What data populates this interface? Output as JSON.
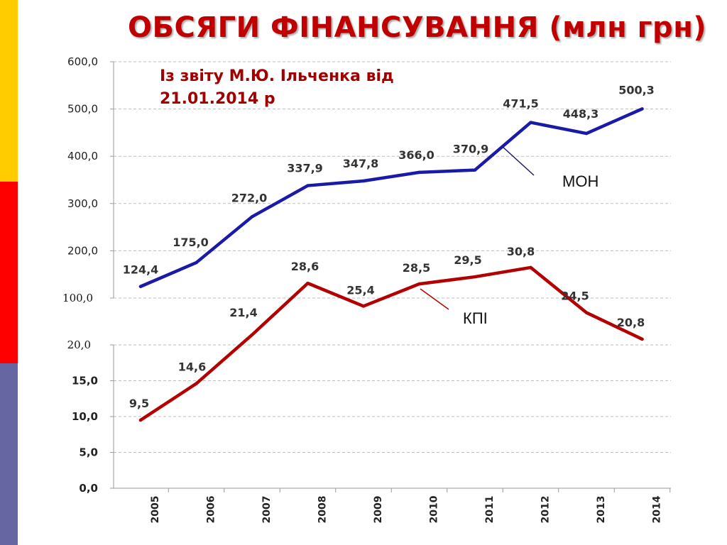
{
  "page": {
    "title": "ОБСЯГИ ФІНАНСУВАННЯ (млн грн)",
    "note_line1": "Із звіту М.Ю. Ільченка від",
    "note_line2": "21.01.2014 р"
  },
  "colors": {
    "stripe_top": "#ffcc00",
    "stripe_middle": "#ff0000",
    "stripe_bottom": "#6666a3",
    "title": "#c00000",
    "series_mon": "#1a1aa8",
    "series_kpi": "#b40000"
  },
  "chart_data": {
    "type": "line",
    "title": "ОБСЯГИ ФІНАНСУВАННЯ (млн грн)",
    "xlabel": "",
    "ylabel": "",
    "x": [
      "2005",
      "2006",
      "2007",
      "2008",
      "2009",
      "2010",
      "2011",
      "2012",
      "2013",
      "2014"
    ],
    "y_axis": {
      "type": "broken",
      "lower": {
        "range": [
          0,
          20
        ],
        "ticks": [
          "0,0",
          "5,0",
          "10,0",
          "15,0",
          "20,0"
        ]
      },
      "upper": {
        "range": [
          100,
          600
        ],
        "ticks": [
          "100,0",
          "200,0",
          "300,0",
          "400,0",
          "500,0",
          "600,0"
        ]
      }
    },
    "grid": true,
    "series": [
      {
        "name": "МОН",
        "values": [
          124.4,
          175.0,
          272.0,
          337.9,
          347.8,
          366.0,
          370.9,
          471.5,
          448.3,
          500.3
        ],
        "labels": [
          "124,4",
          "175,0",
          "272,0",
          "337,9",
          "347,8",
          "366,0",
          "370,9",
          "471,5",
          "448,3",
          "500,3"
        ]
      },
      {
        "name": "КПІ",
        "values": [
          9.5,
          14.6,
          21.4,
          28.6,
          25.4,
          28.5,
          29.5,
          30.8,
          24.5,
          20.8
        ],
        "labels": [
          "9,5",
          "14,6",
          "21,4",
          "28,6",
          "25,4",
          "28,5",
          "29,5",
          "30,8",
          "24,5",
          "20,8"
        ]
      }
    ]
  }
}
